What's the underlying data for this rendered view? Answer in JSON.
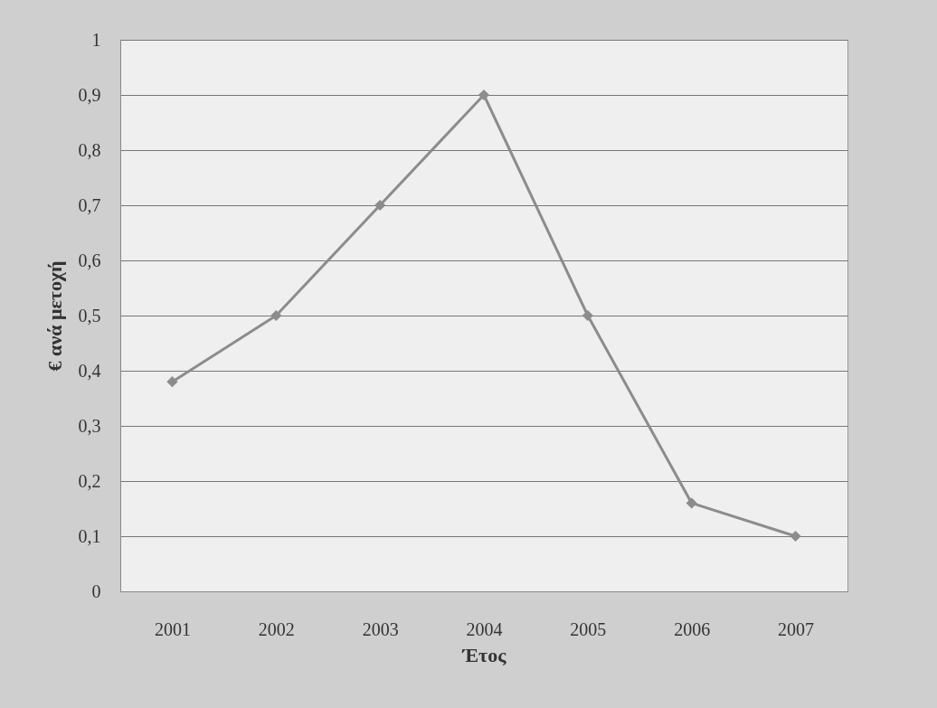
{
  "chart_data": {
    "type": "line",
    "xlabel": "Έτος",
    "ylabel": "€ ανά μετοχή",
    "categories": [
      "2001",
      "2002",
      "2003",
      "2004",
      "2005",
      "2006",
      "2007"
    ],
    "series": [
      {
        "color": "#8c8c8c",
        "values": [
          0.38,
          0.5,
          0.7,
          0.9,
          0.5,
          0.16,
          0.1
        ]
      }
    ],
    "ylim": [
      0,
      1
    ],
    "yticks": [
      0,
      {
        "value": 0.1,
        "label": "0,1"
      },
      {
        "value": 0.2,
        "label": "0,2"
      },
      {
        "value": 0.3,
        "label": "0,3"
      },
      {
        "value": 0.4,
        "label": "0,4"
      },
      {
        "value": 0.5,
        "label": "0,5"
      },
      {
        "value": 0.6,
        "label": "0,6"
      },
      {
        "value": 0.7,
        "label": "0,7"
      },
      {
        "value": 0.8,
        "label": "0,8"
      },
      {
        "value": 0.9,
        "label": "0,9"
      },
      1
    ],
    "grid": "y",
    "marker": "diamond",
    "line_style": "solid"
  }
}
